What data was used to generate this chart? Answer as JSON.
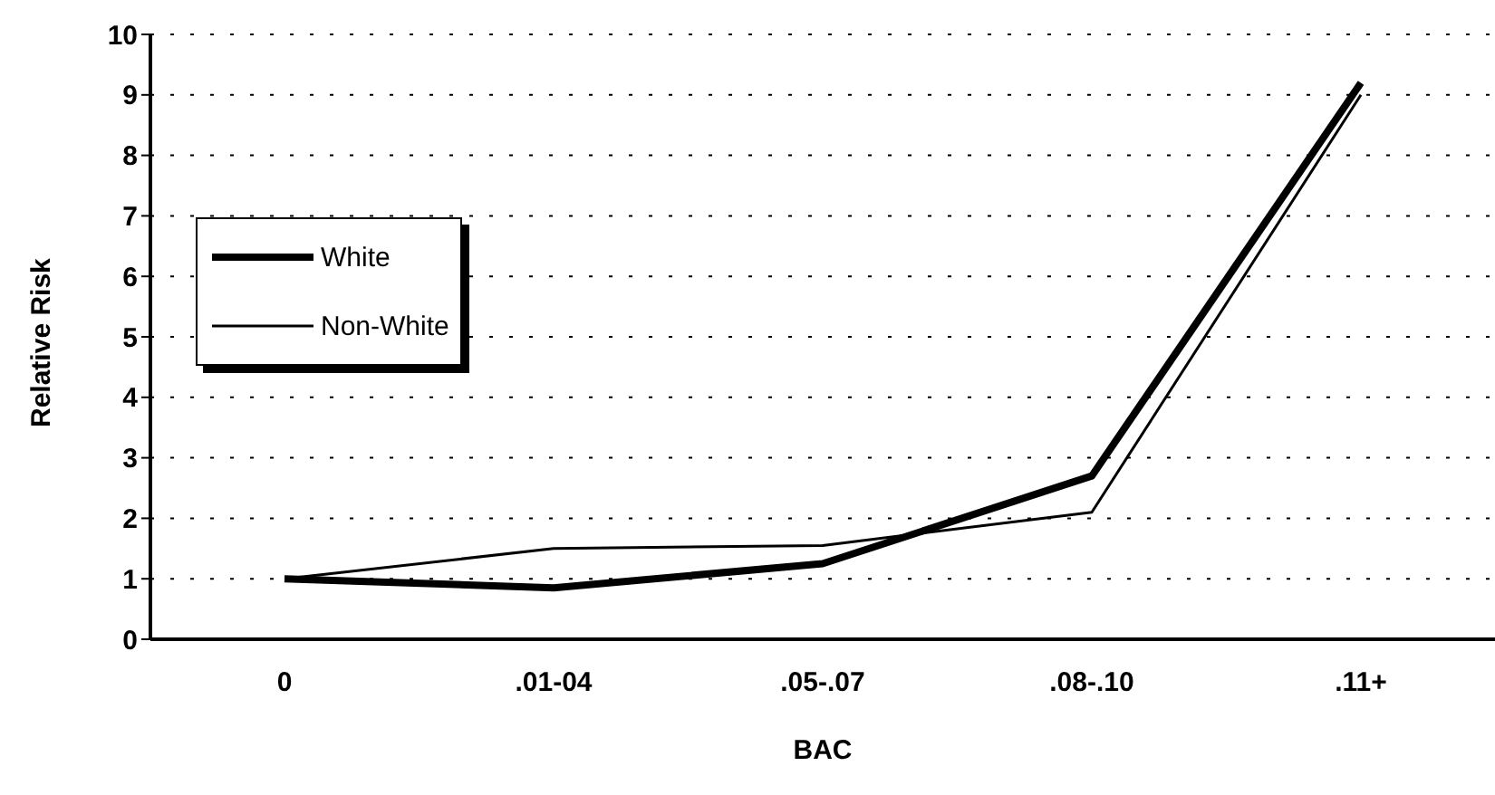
{
  "chart_data": {
    "type": "line",
    "xlabel": "BAC",
    "ylabel": "Relative Risk",
    "categories": [
      "0",
      ".01-04",
      ".05-.07",
      ".08-.10",
      ".11+"
    ],
    "series": [
      {
        "name": "White",
        "color": "#000000",
        "values": [
          1,
          0.85,
          1.25,
          2.7,
          9.2
        ]
      },
      {
        "name": "Non-White",
        "color": "#000000",
        "values": [
          1,
          1.5,
          1.55,
          2.1,
          9.0
        ]
      }
    ],
    "ylim": [
      0,
      10
    ],
    "yticks": [
      0,
      1,
      2,
      3,
      4,
      5,
      6,
      7,
      8,
      9,
      10
    ],
    "grid": "y",
    "legend": "left",
    "marker": "none",
    "line_style": "solid"
  }
}
